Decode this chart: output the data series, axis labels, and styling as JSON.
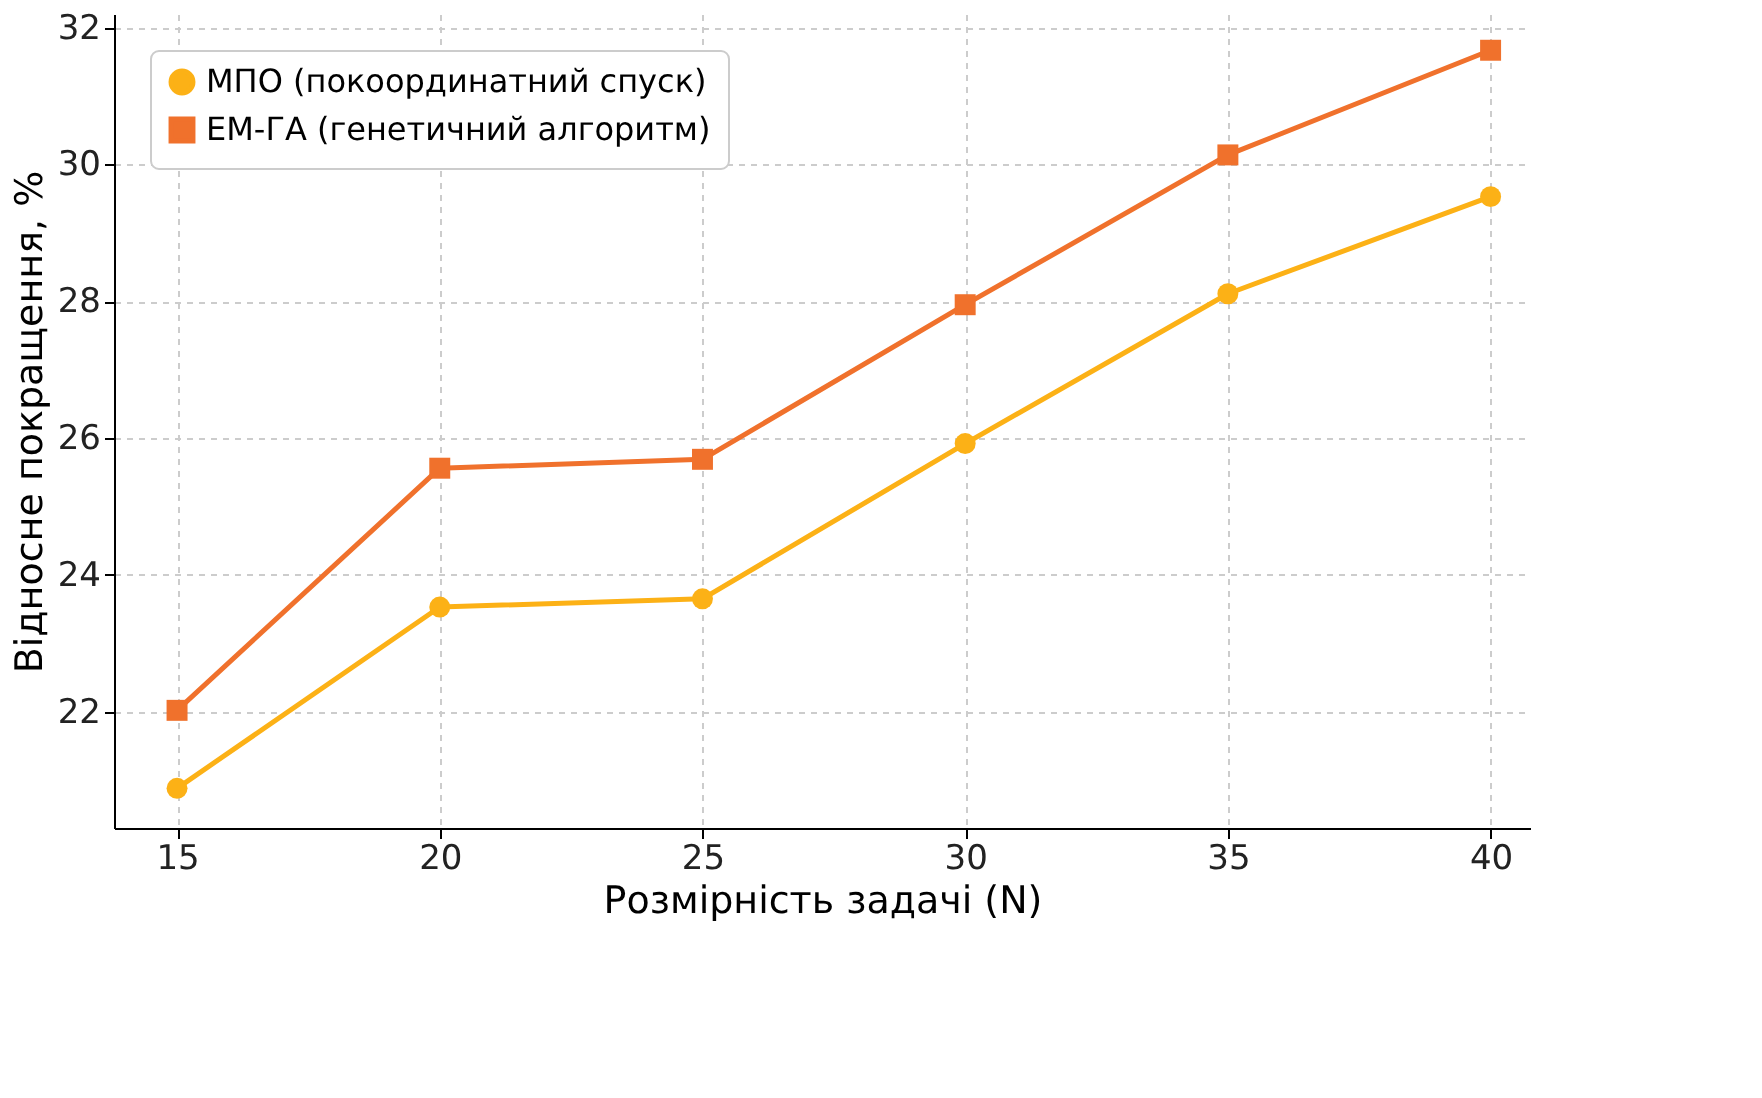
{
  "chart_data": {
    "type": "line",
    "xlabel": "Розмірність задачі (N)",
    "ylabel": "Відносне покращення, %",
    "x": [
      15,
      20,
      25,
      30,
      35,
      40
    ],
    "series": [
      {
        "name": "МПО (покоординатний спуск)",
        "color": "#fcb116",
        "marker": "circle",
        "values": [
          20.88,
          23.53,
          23.65,
          25.92,
          28.11,
          29.53
        ]
      },
      {
        "name": "ЕМ-ГА (генетичний алгоритм)",
        "color": "#f0712c",
        "marker": "square",
        "values": [
          22.02,
          25.56,
          25.69,
          27.95,
          30.14,
          31.67
        ]
      }
    ],
    "xlim": [
      13.8,
      40.75
    ],
    "xticks": [
      15,
      20,
      25,
      30,
      35,
      40
    ],
    "ylim": [
      20.3,
      32.2
    ],
    "yticks": [
      22,
      24,
      26,
      28,
      30,
      32
    ],
    "grid": true,
    "legend": "top left",
    "line_style": "solid"
  }
}
